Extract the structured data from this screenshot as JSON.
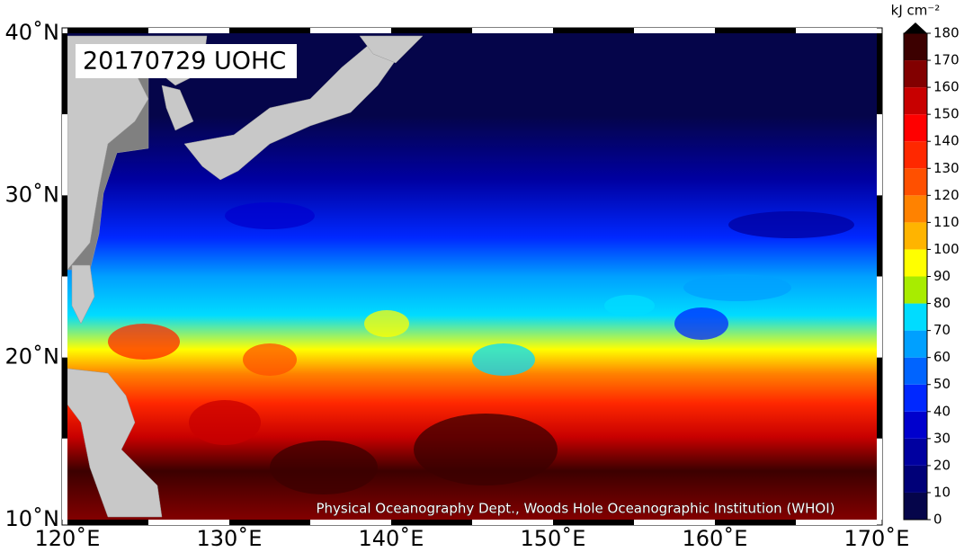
{
  "map": {
    "title": "20170729 UOHC",
    "credit": "Physical Oceanography Dept., Woods Hole Oceanographic Institution (WHOI)",
    "lon_range": [
      120,
      170
    ],
    "lat_range": [
      10,
      40
    ],
    "lon_labels": [
      {
        "value": 120,
        "label": "120˚E"
      },
      {
        "value": 130,
        "label": "130˚E"
      },
      {
        "value": 140,
        "label": "140˚E"
      },
      {
        "value": 150,
        "label": "150˚E"
      },
      {
        "value": 160,
        "label": "160˚E"
      },
      {
        "value": 170,
        "label": "170˚E"
      }
    ],
    "lat_labels": [
      {
        "value": 10,
        "label": "10˚N"
      },
      {
        "value": 20,
        "label": "20˚N"
      },
      {
        "value": 30,
        "label": "30˚N"
      },
      {
        "value": 40,
        "label": "40˚N"
      }
    ],
    "colorbar": {
      "unit": "kJ cm⁻²",
      "ticks": [
        0,
        10,
        20,
        30,
        40,
        50,
        60,
        70,
        80,
        90,
        100,
        110,
        120,
        130,
        140,
        150,
        160,
        170,
        180
      ],
      "colors": [
        "#05054a",
        "#000078",
        "#0000a0",
        "#0000cd",
        "#0028ff",
        "#0064ff",
        "#00a0ff",
        "#00dcff",
        "#a8ec00",
        "#ffff00",
        "#ffb400",
        "#ff8200",
        "#ff5000",
        "#ff2800",
        "#ff0000",
        "#c80000",
        "#820000",
        "#3c0000"
      ],
      "over_color": "#000000"
    }
  }
}
